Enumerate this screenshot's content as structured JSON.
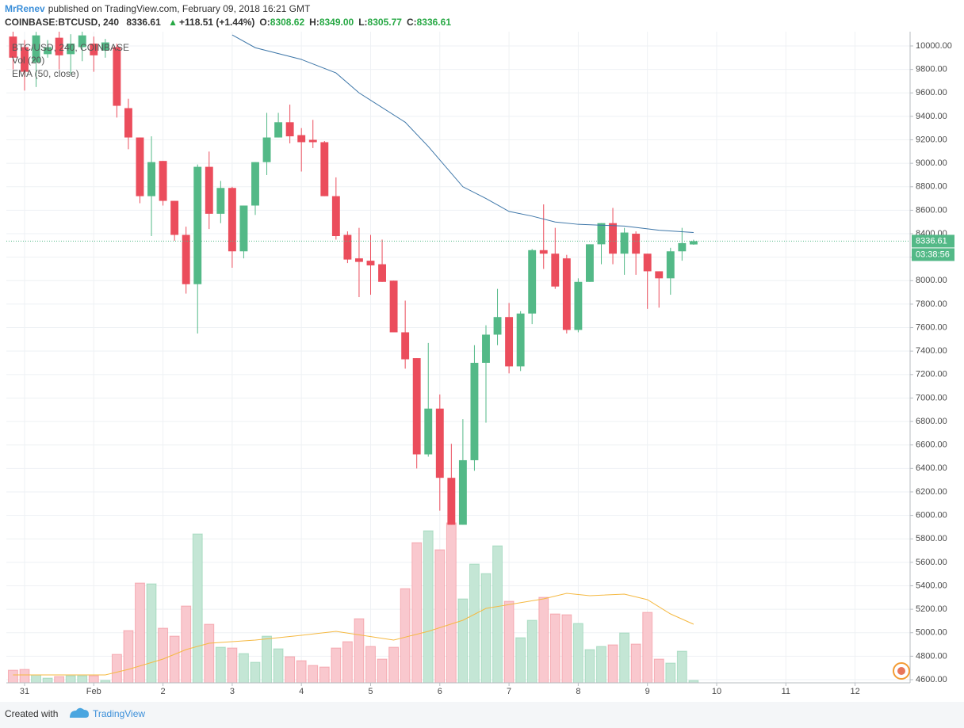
{
  "header": {
    "author": "MrRenev",
    "published": "published on TradingView.com, February 09, 2018 16:21 GMT",
    "symbol": "COINBASE:BTCUSD, 240",
    "price": "8336.61",
    "change": "+118.51 (+1.44%)",
    "ohlc": [
      {
        "key": "O:",
        "value": "8308.62"
      },
      {
        "key": "H:",
        "value": "8349.00"
      },
      {
        "key": "L:",
        "value": "8305.77"
      },
      {
        "key": "C:",
        "value": "8336.61"
      }
    ]
  },
  "footer": {
    "created": "Created with",
    "brand": "TradingView"
  },
  "chart_data": {
    "type": "candlestick",
    "title": "BTC/USD, 240, COINBASE",
    "x": [
      -1,
      0,
      1,
      2,
      3,
      4,
      5,
      6,
      7,
      8,
      9,
      10,
      11,
      12,
      13,
      14,
      15,
      16,
      17,
      18,
      19,
      20,
      21,
      22,
      23,
      24,
      25,
      26,
      27,
      28,
      29,
      30,
      31,
      32,
      33,
      34,
      35,
      36,
      37,
      38,
      39,
      40,
      41,
      42,
      43,
      44,
      45,
      46,
      47,
      48,
      49,
      50,
      51,
      52,
      53,
      54,
      55,
      56,
      57,
      58
    ],
    "open": [
      10080,
      9990,
      9860,
      9930,
      10070,
      9930,
      9990,
      10020,
      9960,
      9990,
      9470,
      9220,
      8720,
      9020,
      8680,
      8390,
      7970,
      8970,
      8570,
      8790,
      8250,
      8640,
      9010,
      9220,
      9350,
      9240,
      9200,
      9180,
      8720,
      8390,
      8190,
      8170,
      8140,
      8000,
      7560,
      7340,
      6520,
      6910,
      6320,
      5920,
      6470,
      7300,
      7540,
      7690,
      7270,
      7720,
      8260,
      8230,
      8190,
      7580,
      7990,
      8310,
      8490,
      8230,
      8400,
      8230,
      8080,
      8020,
      8250,
      8308.62
    ],
    "high": [
      10150,
      10050,
      10120,
      10050,
      10150,
      10100,
      10150,
      10080,
      10060,
      10020,
      9550,
      9220,
      9230,
      9020,
      8680,
      8460,
      8990,
      9100,
      8850,
      8800,
      8640,
      9010,
      9430,
      9430,
      9500,
      9300,
      9370,
      9190,
      8880,
      8420,
      8450,
      8390,
      8350,
      8000,
      7830,
      7340,
      7470,
      7030,
      6610,
      6820,
      7450,
      7620,
      7930,
      7810,
      7740,
      8270,
      8650,
      8450,
      8220,
      8020,
      8310,
      8490,
      8620,
      8450,
      8420,
      8230,
      8080,
      8280,
      8450,
      8349.0
    ],
    "low": [
      9800,
      9620,
      9650,
      9900,
      9800,
      9760,
      9870,
      9780,
      9900,
      9390,
      9120,
      8660,
      8380,
      8640,
      8340,
      7890,
      7550,
      8440,
      8490,
      8110,
      8190,
      8560,
      8900,
      9220,
      9170,
      8930,
      9130,
      8720,
      8350,
      8150,
      7860,
      7880,
      7990,
      7560,
      7250,
      6400,
      6500,
      6040,
      5920,
      5920,
      6380,
      6790,
      7450,
      7210,
      7230,
      7630,
      8100,
      7930,
      7550,
      7560,
      7990,
      8140,
      8140,
      8050,
      8050,
      7760,
      7770,
      7880,
      8170,
      8305.77
    ],
    "close": [
      9900,
      9780,
      10090,
      9990,
      9920,
      10020,
      10090,
      9920,
      10030,
      9490,
      9220,
      8720,
      9010,
      8680,
      8390,
      7970,
      8970,
      8570,
      8790,
      8250,
      8640,
      9010,
      9220,
      9350,
      9230,
      9180,
      9180,
      8720,
      8380,
      8180,
      8160,
      8130,
      7990,
      7560,
      7330,
      6520,
      6910,
      6320,
      5920,
      6470,
      7300,
      7540,
      7690,
      7270,
      7720,
      8260,
      8230,
      7950,
      7580,
      7990,
      8310,
      8490,
      8230,
      8410,
      8230,
      8080,
      8020,
      8250,
      8320,
      8336.61
    ],
    "up_color": "#53b987",
    "down_color": "#eb4d5c",
    "xlim": [
      -1.58,
      76.77
    ],
    "xticks": [
      {
        "value": 0,
        "label": "31"
      },
      {
        "value": 6,
        "label": "Feb"
      },
      {
        "value": 12,
        "label": "2"
      },
      {
        "value": 18,
        "label": "3"
      },
      {
        "value": 24,
        "label": "4"
      },
      {
        "value": 30,
        "label": "5"
      },
      {
        "value": 36,
        "label": "6"
      },
      {
        "value": 42,
        "label": "7"
      },
      {
        "value": 48,
        "label": "8"
      },
      {
        "value": 54,
        "label": "9"
      },
      {
        "value": 60,
        "label": "10"
      },
      {
        "value": 66,
        "label": "11"
      },
      {
        "value": 72,
        "label": "12"
      }
    ],
    "ylim": [
      4573,
      10121.5
    ],
    "yticks": [
      {
        "value": 4600,
        "label": "4600.00"
      },
      {
        "value": 4800,
        "label": "4800.00"
      },
      {
        "value": 5000,
        "label": "5000.00"
      },
      {
        "value": 5200,
        "label": "5200.00"
      },
      {
        "value": 5400,
        "label": "5400.00"
      },
      {
        "value": 5600,
        "label": "5600.00"
      },
      {
        "value": 5800,
        "label": "5800.00"
      },
      {
        "value": 6000,
        "label": "6000.00"
      },
      {
        "value": 6200,
        "label": "6200.00"
      },
      {
        "value": 6400,
        "label": "6400.00"
      },
      {
        "value": 6600,
        "label": "6600.00"
      },
      {
        "value": 6800,
        "label": "6800.00"
      },
      {
        "value": 7000,
        "label": "7000.00"
      },
      {
        "value": 7200,
        "label": "7200.00"
      },
      {
        "value": 7400,
        "label": "7400.00"
      },
      {
        "value": 7600,
        "label": "7600.00"
      },
      {
        "value": 7800,
        "label": "7800.00"
      },
      {
        "value": 8000,
        "label": "8000.00"
      },
      {
        "value": 8200,
        "label": "8200.00"
      },
      {
        "value": 8400,
        "label": "8400.00"
      },
      {
        "value": 8600,
        "label": "8600.00"
      },
      {
        "value": 8800,
        "label": "8800.00"
      },
      {
        "value": 9000,
        "label": "9000.00"
      },
      {
        "value": 9200,
        "label": "9200.00"
      },
      {
        "value": 9400,
        "label": "9400.00"
      },
      {
        "value": 9600,
        "label": "9600.00"
      },
      {
        "value": 9800,
        "label": "9800.00"
      },
      {
        "value": 10000,
        "label": "10000.00"
      }
    ],
    "grid": true,
    "last_price": {
      "value": 8336.61,
      "label": "8336.61"
    },
    "countdown": "03:38:56",
    "volume": {
      "name": "Vol (20)",
      "ylim": [
        0,
        220
      ],
      "up_color": "#c4e6d5",
      "down_color": "#f9c8ce",
      "values": [
        16,
        17,
        10,
        6,
        8,
        9,
        9,
        9,
        3,
        36,
        66,
        126,
        125,
        69,
        59,
        97,
        188,
        74,
        45,
        44,
        37,
        26,
        59,
        43,
        33,
        28,
        22,
        20,
        44,
        52,
        81,
        46,
        30,
        45,
        119,
        177,
        192,
        168,
        202,
        106,
        150,
        138,
        173,
        103,
        57,
        79,
        108,
        87,
        86,
        75,
        42,
        46,
        48,
        63,
        49,
        89,
        30,
        25,
        40,
        3
      ],
      "ma": {
        "color": "#f5b942",
        "x": [
          -1,
          7,
          9,
          12,
          14,
          16,
          20,
          24,
          27,
          32,
          35,
          38,
          40,
          45,
          47,
          49,
          52,
          54,
          56,
          58
        ],
        "values": [
          10,
          10,
          17,
          30,
          42,
          50,
          54,
          60,
          65,
          54,
          65,
          79,
          94,
          106,
          113,
          110,
          112,
          105,
          87,
          74
        ]
      }
    },
    "ema": {
      "name": "EMA (50, close)",
      "color": "#3d76a8",
      "x": [
        18,
        20,
        24,
        27,
        29,
        33,
        35,
        38,
        40,
        42,
        44,
        46,
        48,
        52,
        55,
        58
      ],
      "values": [
        10094,
        9985,
        9885,
        9770,
        9600,
        9350,
        9143,
        8800,
        8700,
        8590,
        8550,
        8500,
        8480,
        8465,
        8430,
        8410
      ]
    }
  }
}
